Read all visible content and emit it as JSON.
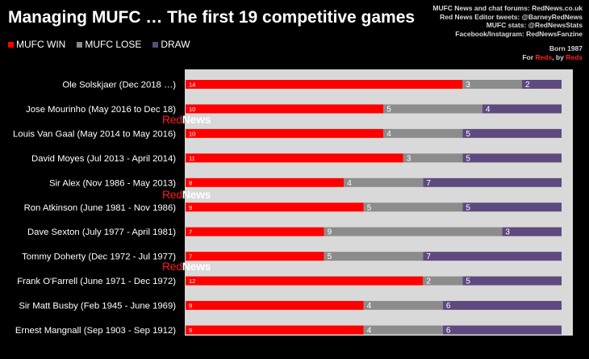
{
  "title": "Managing MUFC … The first 19 competitive games",
  "legend": [
    {
      "label": "MUFC WIN",
      "color": "#ff0000"
    },
    {
      "label": "MUFC LOSE",
      "color": "#8c8c8c"
    },
    {
      "label": "DRAW",
      "color": "#5e4a7e"
    }
  ],
  "credits": {
    "line1": "MUFC News and chat forums: RedNews.co.uk",
    "line2": "Red News Editor tweets: @BarneyRedNews",
    "line3": "MUFC stats: @RedNewsStats",
    "line4": "Facebook/Instagram: RedNewsFanzine",
    "born": "Born 1987",
    "tag_for": "For ",
    "tag_reds1": "Reds",
    "tag_by": ", by ",
    "tag_reds2": "Reds"
  },
  "watermark": {
    "red": "Red",
    "white": "News"
  },
  "chart_data": {
    "type": "bar",
    "orientation": "horizontal",
    "stacked": true,
    "categories": [
      "Ole Solskjaer (Dec 2018 …)",
      "Jose Mourinho (May 2016 to Dec 18)",
      "Louis Van Gaal (May 2014 to May 2016)",
      "David Moyes (Jul 2013 - April 2014)",
      "Sir Alex (Nov 1986 - May 2013)",
      "Ron Atkinson (June 1981 - Nov 1986)",
      "Dave Sexton (July 1977 - April 1981)",
      "Tommy Doherty (Dec 1972 - Jul 1977)",
      "Frank O'Farrell (June 1971 - Dec 1972)",
      "Sir Matt Busby (Feb 1945 - June 1969)",
      "Ernest Mangnall (Sep 1903 - Sep 1912)"
    ],
    "series": [
      {
        "name": "MUFC WIN",
        "color": "#ff0000",
        "values": [
          14,
          10,
          10,
          11,
          8,
          9,
          7,
          7,
          12,
          9,
          9
        ]
      },
      {
        "name": "MUFC LOSE",
        "color": "#8c8c8c",
        "values": [
          3,
          5,
          4,
          3,
          4,
          5,
          9,
          5,
          2,
          4,
          4
        ]
      },
      {
        "name": "DRAW",
        "color": "#5e4a7e",
        "values": [
          2,
          4,
          5,
          5,
          7,
          5,
          3,
          7,
          5,
          6,
          6
        ]
      }
    ],
    "xlim": [
      0,
      19
    ],
    "grid": false,
    "legend_position": "top-left"
  }
}
